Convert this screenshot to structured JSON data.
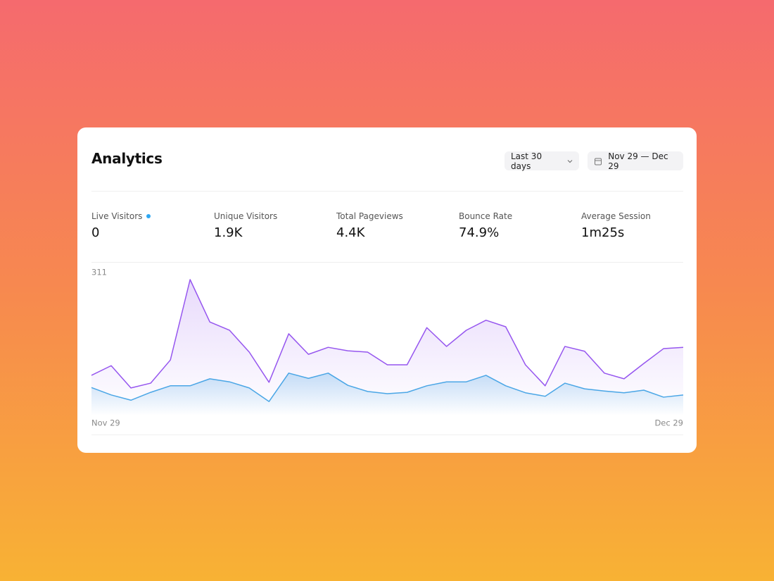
{
  "header": {
    "title": "Analytics",
    "range_button": "Last 30 days",
    "date_button": "Nov 29 — Dec 29"
  },
  "stats": [
    {
      "label": "Live Visitors",
      "value": "0"
    },
    {
      "label": "Unique Visitors",
      "value": "1.9K"
    },
    {
      "label": "Total Pageviews",
      "value": "4.4K"
    },
    {
      "label": "Bounce Rate",
      "value": "74.9%"
    },
    {
      "label": "Average Session",
      "value": "1m25s"
    }
  ],
  "chart_data": {
    "type": "area",
    "categories": [
      "Nov 29",
      null,
      null,
      null,
      null,
      null,
      null,
      null,
      null,
      null,
      null,
      null,
      null,
      null,
      null,
      null,
      null,
      null,
      null,
      null,
      null,
      null,
      null,
      null,
      null,
      null,
      null,
      null,
      null,
      null,
      "Dec 29"
    ],
    "series": [
      {
        "color": "#9656ef",
        "values": [
          92,
          114,
          63,
          74,
          127,
          311,
          214,
          195,
          145,
          76,
          187,
          140,
          156,
          148,
          145,
          116,
          116,
          201,
          158,
          195,
          218,
          203,
          116,
          68,
          158,
          147,
          97,
          84,
          119,
          153,
          156
        ]
      },
      {
        "color": "#4aa6e6",
        "values": [
          64,
          47,
          35,
          53,
          68,
          68,
          84,
          77,
          63,
          32,
          97,
          85,
          97,
          69,
          55,
          50,
          53,
          68,
          77,
          77,
          92,
          68,
          52,
          44,
          74,
          61,
          56,
          52,
          58,
          42,
          47
        ]
      }
    ],
    "ylim": [
      0,
      311
    ],
    "yticks": [
      311
    ],
    "grid": false
  }
}
